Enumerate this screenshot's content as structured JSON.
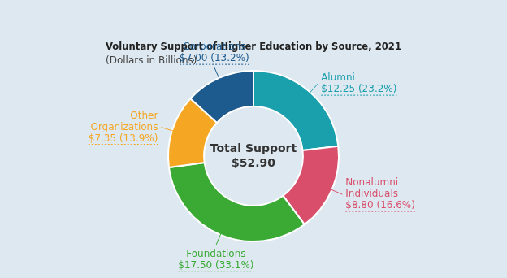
{
  "chart_data": {
    "type": "doughnut",
    "title": "Voluntary Support of Higher Education by Source, 2021",
    "subtitle": "(Dollars in Billions)",
    "annotations": [
      "Total Support",
      "$52.90"
    ],
    "categories": [
      "Alumni",
      "Nonalumni Individuals",
      "Foundations",
      "Other Organizations",
      "Corporations"
    ],
    "values": [
      12.25,
      8.8,
      17.5,
      7.35,
      7.0
    ],
    "value_labels": [
      "$12.25 (23.2%)",
      "$8.80 (16.6%)",
      "$17.50 (33.1%)",
      "$7.35 (13.9%)",
      "$7.00 (13.2%)"
    ],
    "colors": [
      "#1a9fad",
      "#d94f6b",
      "#3aaa35",
      "#f5a623",
      "#1d5a8e"
    ],
    "data_labels": true,
    "legend": false
  }
}
